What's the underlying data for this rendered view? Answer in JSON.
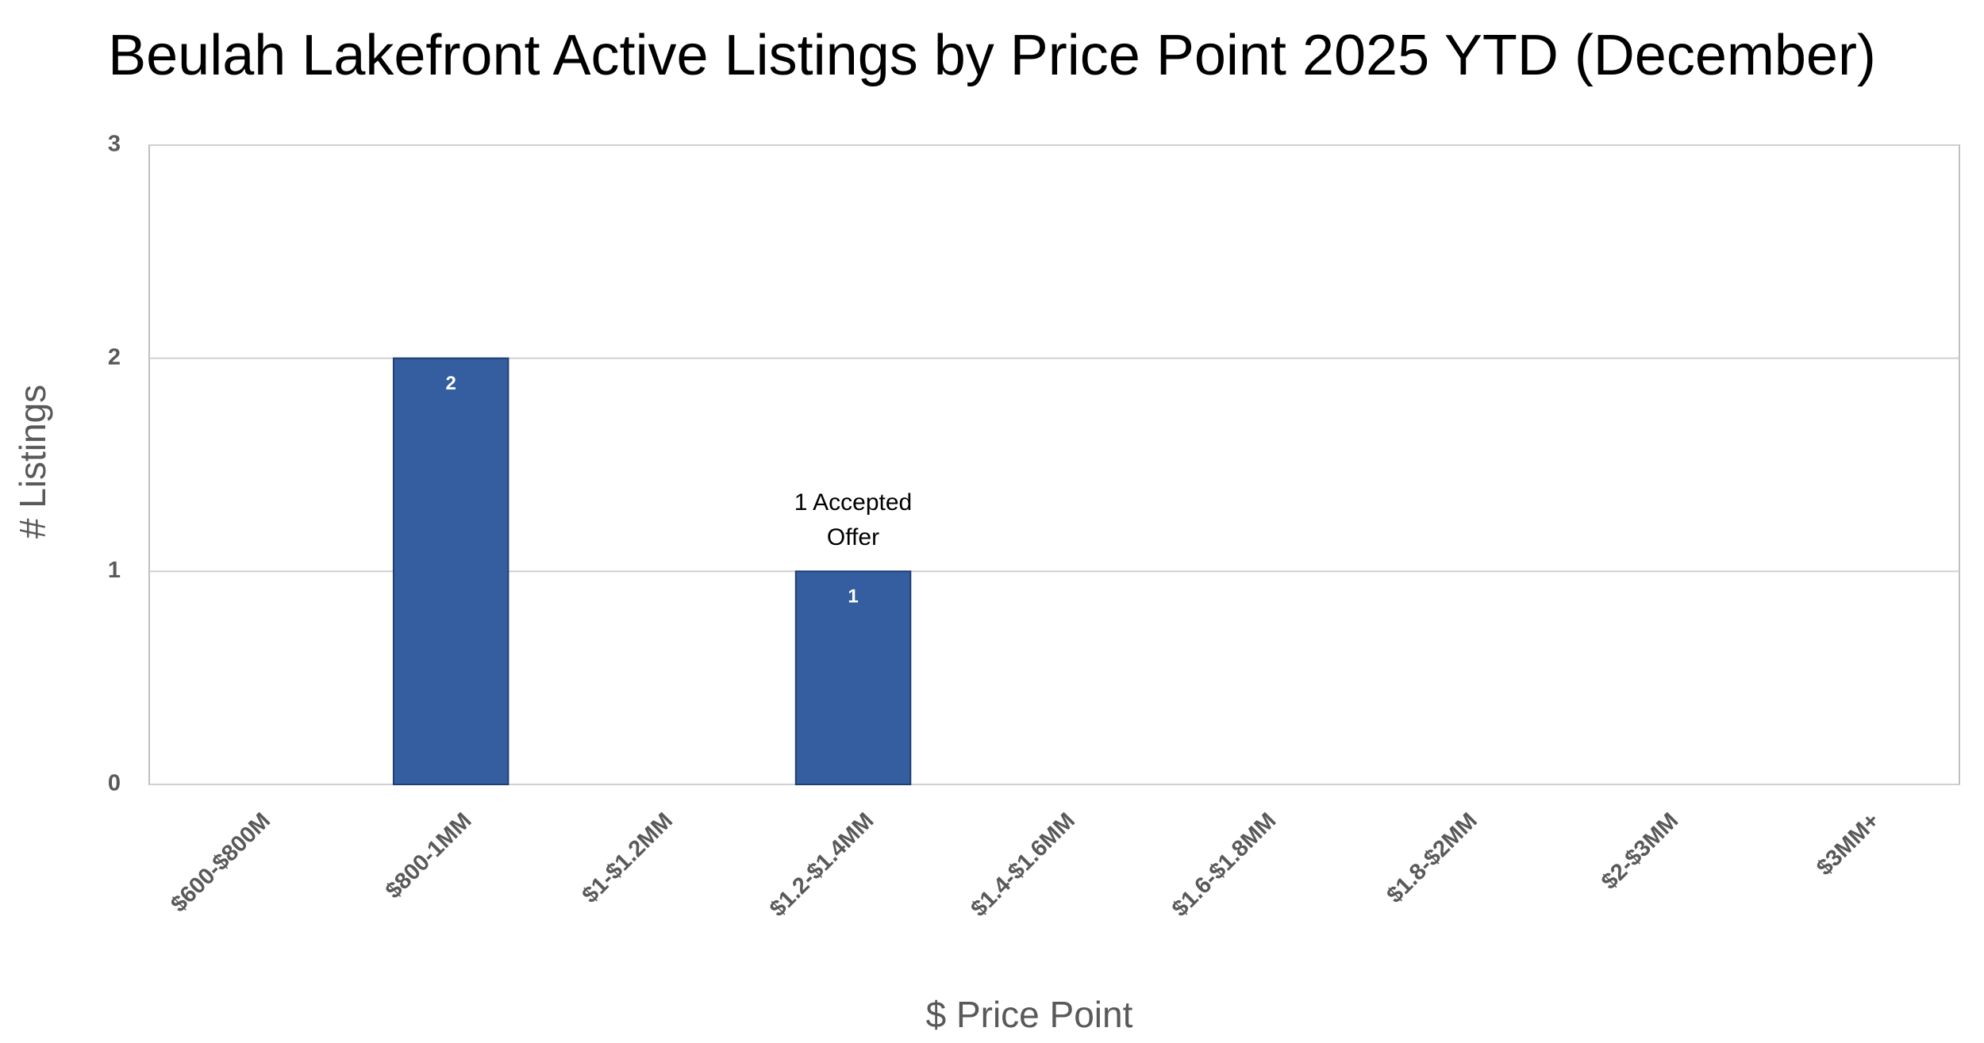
{
  "chart_data": {
    "type": "bar",
    "title": "Beulah Lakefront Active Listings by Price Point 2025 YTD (December)",
    "x_label": "$ Price Point",
    "y_label": "# Listings",
    "categories": [
      "$600-$800M",
      "$800-1MM",
      "$1-$1.2MM",
      "$1.2-$1.4MM",
      "$1.4-$1.6MM",
      "$1.6-$1.8MM",
      "$1.8-$2MM",
      "$2-$3MM",
      "$3MM+"
    ],
    "values": [
      0,
      2,
      0,
      1,
      0,
      0,
      0,
      0,
      0
    ],
    "color": "#345ea0",
    "ylim": [
      0,
      3
    ],
    "yticks": [
      0,
      1,
      2,
      3
    ],
    "grid": true,
    "annotation": "1 Accepted Offer"
  }
}
